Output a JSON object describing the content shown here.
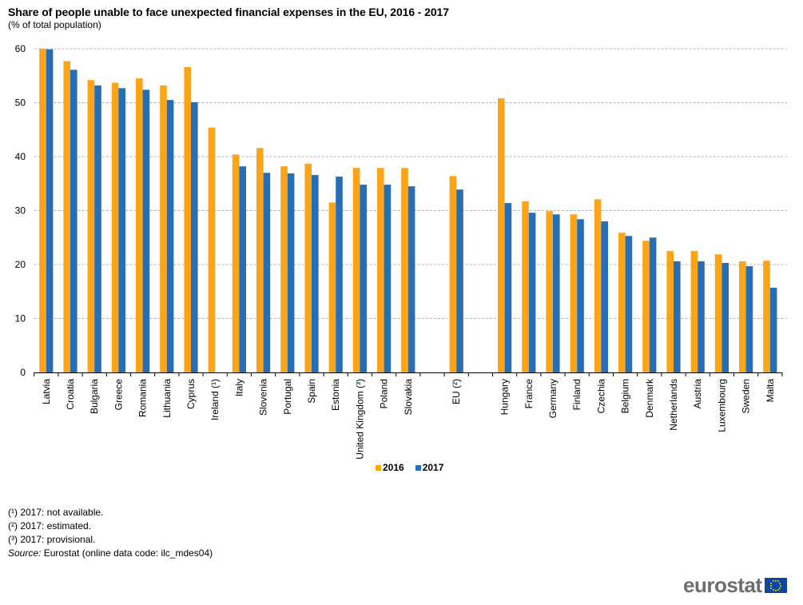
{
  "chart_data": {
    "type": "bar",
    "title": "Share of people unable to face unexpected financial expenses in the EU, 2016 - 2017",
    "subtitle": "(% of total population)",
    "xlabel": "",
    "ylabel": "",
    "ylim": [
      0,
      60
    ],
    "yticks": [
      0,
      10,
      20,
      30,
      40,
      50,
      60
    ],
    "grid": true,
    "legend_position": "bottom-center",
    "categories": [
      "Latvia",
      "Croatia",
      "Bulgaria",
      "Greece",
      "Romania",
      "Lithuania",
      "Cyprus",
      "Ireland (¹)",
      "Italy",
      "Slovenia",
      "Portugal",
      "Spain",
      "Estonia",
      "United Kingdom (³)",
      "Poland",
      "Slovakia",
      "",
      "EU (²)",
      "",
      "Hungary",
      "France",
      "Germany",
      "Finland",
      "Czechia",
      "Belgium",
      "Denmark",
      "Netherlands",
      "Austria",
      "Luxembourg",
      "Sweden",
      "Malta"
    ],
    "series": [
      {
        "name": "2016",
        "color": "#faa519",
        "values": [
          60.0,
          57.7,
          54.2,
          53.7,
          54.5,
          53.2,
          56.6,
          45.4,
          40.4,
          41.6,
          38.2,
          38.7,
          31.5,
          37.9,
          37.9,
          37.9,
          null,
          36.4,
          null,
          50.8,
          31.7,
          29.9,
          29.3,
          32.1,
          25.9,
          24.4,
          22.5,
          22.5,
          21.9,
          20.6,
          20.7
        ]
      },
      {
        "name": "2017",
        "color": "#286eb4",
        "values": [
          59.9,
          56.1,
          53.2,
          52.7,
          52.4,
          50.5,
          50.1,
          null,
          38.2,
          37.0,
          36.9,
          36.6,
          36.3,
          34.8,
          34.8,
          34.5,
          null,
          33.9,
          null,
          31.4,
          29.6,
          29.3,
          28.4,
          28.0,
          25.3,
          25.0,
          20.6,
          20.6,
          20.3,
          19.7,
          15.7
        ]
      }
    ]
  },
  "notes": [
    "(¹) 2017: not available.",
    "(²) 2017: estimated.",
    "(³) 2017: provisional."
  ],
  "source": {
    "label": "Source:",
    "text": " Eurostat (online data code: ilc_mdes04)"
  },
  "logo": {
    "text": "eurostat",
    "icon": "eu-flag-icon"
  }
}
